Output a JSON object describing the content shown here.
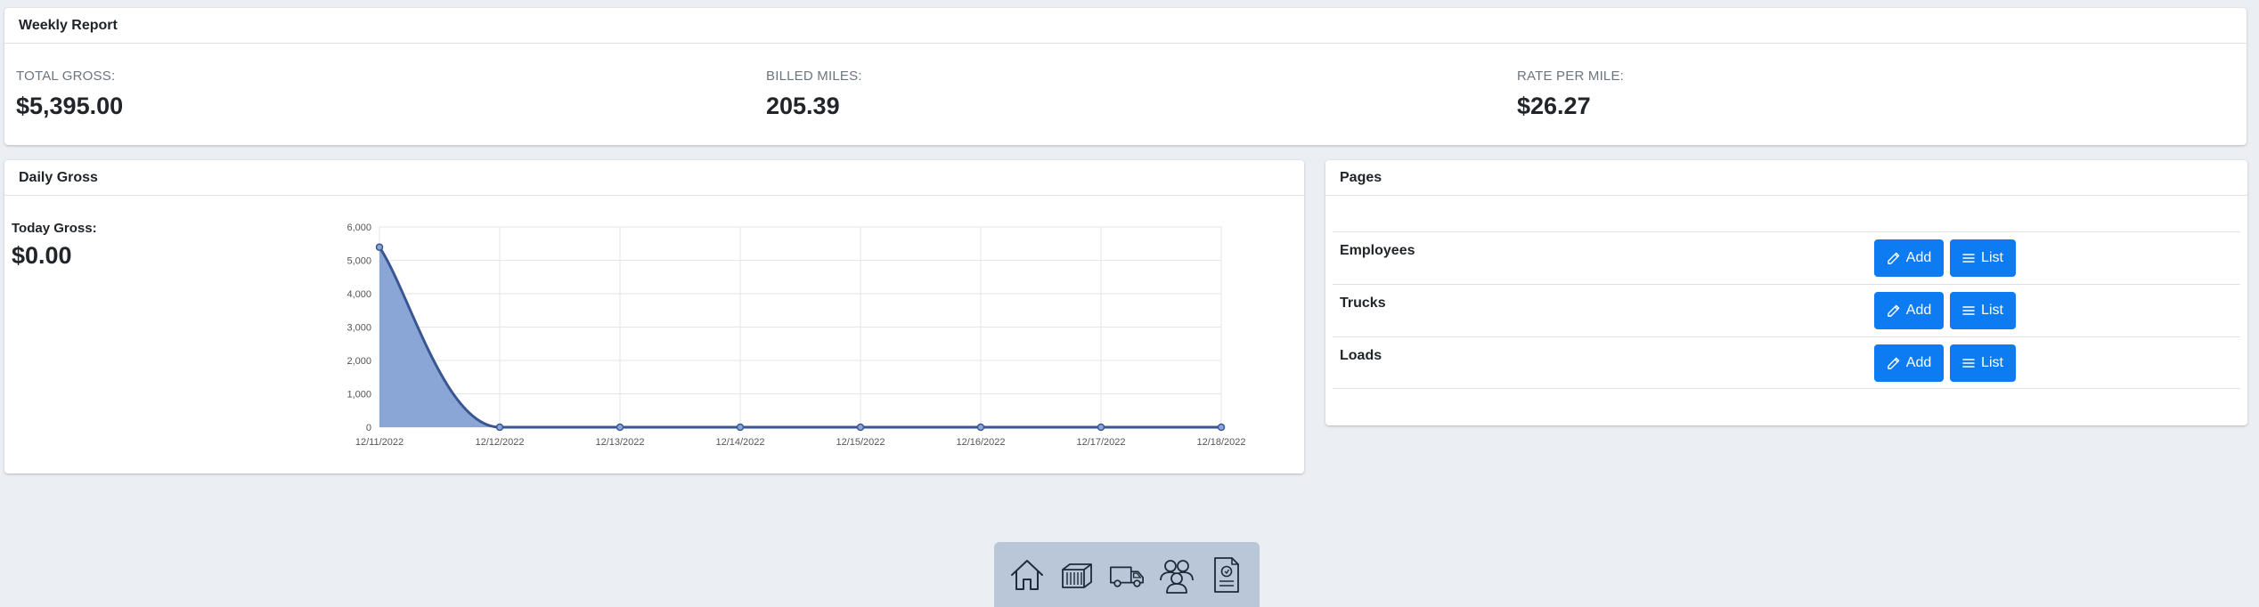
{
  "weekly_report": {
    "title": "Weekly Report",
    "stats": [
      {
        "label": "TOTAL GROSS:",
        "value": "$5,395.00"
      },
      {
        "label": "BILLED MILES:",
        "value": "205.39"
      },
      {
        "label": "RATE PER MILE:",
        "value": "$26.27"
      }
    ]
  },
  "daily_gross": {
    "title": "Daily Gross",
    "today_label": "Today Gross:",
    "today_value": "$0.00"
  },
  "chart_data": {
    "type": "area",
    "categories": [
      "12/11/2022",
      "12/12/2022",
      "12/13/2022",
      "12/14/2022",
      "12/15/2022",
      "12/16/2022",
      "12/17/2022",
      "12/18/2022"
    ],
    "values": [
      5395,
      0,
      0,
      0,
      0,
      0,
      0,
      0
    ],
    "ylim": [
      0,
      6000
    ],
    "yticks": [
      0,
      1000,
      2000,
      3000,
      4000,
      5000,
      6000
    ],
    "ytick_labels": [
      "0",
      "1,000",
      "2,000",
      "3,000",
      "4,000",
      "5,000",
      "6,000"
    ],
    "grid": true,
    "line_color": "#3a5692",
    "fill_color": "#8aa6d6"
  },
  "pages": {
    "title": "Pages",
    "rows": [
      {
        "name": "Employees",
        "add_label": "Add",
        "list_label": "List"
      },
      {
        "name": "Trucks",
        "add_label": "Add",
        "list_label": "List"
      },
      {
        "name": "Loads",
        "add_label": "Add",
        "list_label": "List"
      }
    ]
  },
  "dock": {
    "items": [
      "home-icon",
      "container-icon",
      "truck-icon",
      "users-icon",
      "document-icon"
    ]
  },
  "colors": {
    "background": "#ebeef3",
    "primary_button": "#0d7bf2",
    "dock": "#b9c7d8"
  }
}
